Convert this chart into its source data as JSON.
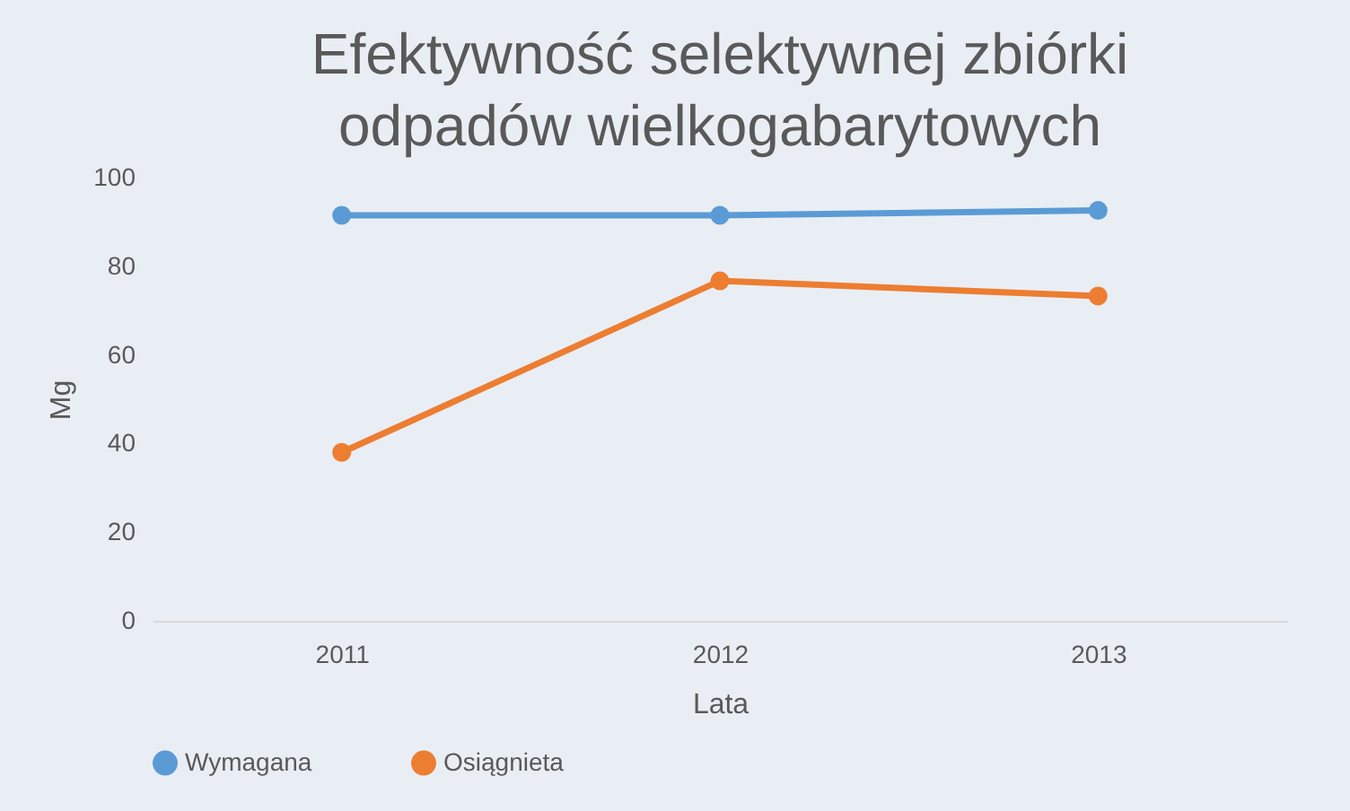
{
  "chart_data": {
    "type": "line",
    "title": "Efektywność selektywnej zbiórki odpadów wielkogabarytowych",
    "xlabel": "Lata",
    "ylabel": "Mg",
    "categories": [
      "2011",
      "2012",
      "2013"
    ],
    "series": [
      {
        "name": "Wymagana",
        "color": "#5b9bd5",
        "values": [
          91.5,
          91.5,
          92.6
        ]
      },
      {
        "name": "Osiągnieta",
        "color": "#ed7d31",
        "values": [
          38,
          76.7,
          73.3
        ]
      }
    ],
    "ylim": [
      0,
      100
    ],
    "yticks": [
      0,
      20,
      40,
      60,
      80,
      100
    ],
    "grid": false,
    "legend": "bottom",
    "marker": "circle",
    "line_style": "solid"
  }
}
